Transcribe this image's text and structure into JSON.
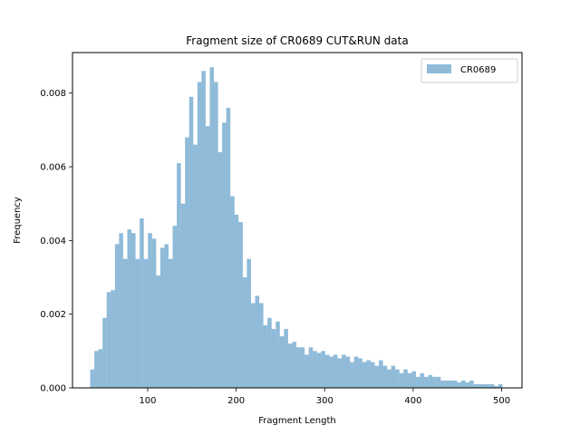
{
  "chart_data": {
    "type": "bar",
    "title": "Fragment size of CR0689 CUT&RUN data",
    "xlabel": "Fragment Length",
    "ylabel": "Frequency",
    "xlim": [
      15,
      523
    ],
    "ylim": [
      0,
      0.0091
    ],
    "xticks": [
      100,
      200,
      300,
      400,
      500
    ],
    "xtick_labels": [
      "100",
      "200",
      "300",
      "400",
      "500"
    ],
    "yticks": [
      0,
      0.002,
      0.004,
      0.006,
      0.008
    ],
    "ytick_labels": [
      "0.000",
      "0.002",
      "0.004",
      "0.006",
      "0.008"
    ],
    "grid": false,
    "legend": {
      "position": "top-right",
      "entries": [
        "CR0689"
      ]
    },
    "series": [
      {
        "name": "CR0689",
        "color": "#1f77b4",
        "alpha": 0.5,
        "bin_start": 35,
        "bin_width": 4.66,
        "values": [
          0.0005,
          0.001,
          0.00105,
          0.0019,
          0.0026,
          0.00265,
          0.0039,
          0.0042,
          0.0035,
          0.0043,
          0.0042,
          0.0035,
          0.0046,
          0.0035,
          0.0042,
          0.00405,
          0.00305,
          0.0038,
          0.0039,
          0.0035,
          0.0044,
          0.0061,
          0.005,
          0.0068,
          0.0079,
          0.0066,
          0.0083,
          0.0086,
          0.0071,
          0.0087,
          0.0083,
          0.0064,
          0.0072,
          0.0076,
          0.0052,
          0.0047,
          0.0045,
          0.003,
          0.0035,
          0.0023,
          0.0025,
          0.0023,
          0.0017,
          0.0019,
          0.0016,
          0.0018,
          0.0014,
          0.0016,
          0.0012,
          0.00125,
          0.0011,
          0.0011,
          0.0009,
          0.0011,
          0.001,
          0.00095,
          0.001,
          0.0009,
          0.00085,
          0.0009,
          0.0008,
          0.0009,
          0.00085,
          0.0007,
          0.00085,
          0.0008,
          0.0007,
          0.00075,
          0.0007,
          0.0006,
          0.00075,
          0.0006,
          0.0005,
          0.0006,
          0.0005,
          0.0004,
          0.0005,
          0.0004,
          0.00045,
          0.0003,
          0.0004,
          0.0003,
          0.00035,
          0.0003,
          0.0003,
          0.0002,
          0.0002,
          0.0002,
          0.0002,
          0.00015,
          0.0002,
          0.00015,
          0.0002,
          0.0001,
          0.0001,
          0.0001,
          0.0001,
          0.0001,
          5e-05,
          0.0001
        ]
      }
    ]
  }
}
